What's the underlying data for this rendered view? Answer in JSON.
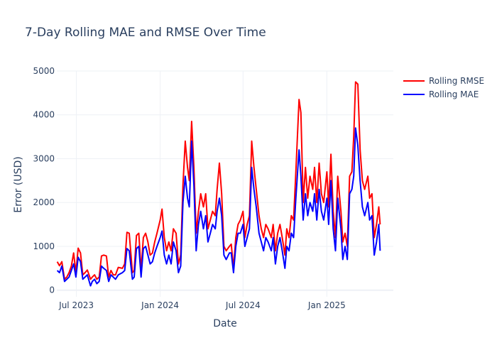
{
  "chart_data": {
    "type": "line",
    "title": "7-Day Rolling MAE and RMSE Over Time",
    "xlabel": "Date",
    "ylabel": "Error (USD)",
    "x_range": [
      "2023-05-19",
      "2025-05-27"
    ],
    "ylim": [
      -150,
      5000
    ],
    "x_ticks": [
      {
        "date": "2023-07-01",
        "label": "Jul 2023"
      },
      {
        "date": "2024-01-01",
        "label": "Jan 2024"
      },
      {
        "date": "2024-07-01",
        "label": "Jul 2024"
      },
      {
        "date": "2025-01-01",
        "label": "Jan 2025"
      }
    ],
    "y_ticks": [
      0,
      1000,
      2000,
      3000,
      4000,
      5000
    ],
    "grid": true,
    "legend": "top-right",
    "series": [
      {
        "name": "Rolling RMSE",
        "color": "#ff0000",
        "points": [
          [
            "2023-05-20",
            650
          ],
          [
            "2023-05-25",
            560
          ],
          [
            "2023-05-30",
            650
          ],
          [
            "2023-06-05",
            250
          ],
          [
            "2023-06-10",
            300
          ],
          [
            "2023-06-15",
            400
          ],
          [
            "2023-06-20",
            550
          ],
          [
            "2023-06-25",
            850
          ],
          [
            "2023-06-30",
            400
          ],
          [
            "2023-07-05",
            960
          ],
          [
            "2023-07-10",
            850
          ],
          [
            "2023-07-15",
            350
          ],
          [
            "2023-07-20",
            400
          ],
          [
            "2023-07-25",
            460
          ],
          [
            "2023-08-01",
            250
          ],
          [
            "2023-08-05",
            300
          ],
          [
            "2023-08-10",
            350
          ],
          [
            "2023-08-15",
            250
          ],
          [
            "2023-08-20",
            300
          ],
          [
            "2023-08-25",
            780
          ],
          [
            "2023-08-30",
            800
          ],
          [
            "2023-09-05",
            780
          ],
          [
            "2023-09-10",
            300
          ],
          [
            "2023-09-15",
            450
          ],
          [
            "2023-09-20",
            350
          ],
          [
            "2023-09-25",
            350
          ],
          [
            "2023-10-01",
            520
          ],
          [
            "2023-10-10",
            500
          ],
          [
            "2023-10-15",
            600
          ],
          [
            "2023-10-20",
            1320
          ],
          [
            "2023-10-25",
            1300
          ],
          [
            "2023-11-01",
            400
          ],
          [
            "2023-11-05",
            450
          ],
          [
            "2023-11-10",
            1250
          ],
          [
            "2023-11-15",
            1300
          ],
          [
            "2023-11-20",
            450
          ],
          [
            "2023-11-25",
            1200
          ],
          [
            "2023-11-30",
            1300
          ],
          [
            "2023-12-05",
            1100
          ],
          [
            "2023-12-10",
            800
          ],
          [
            "2023-12-15",
            850
          ],
          [
            "2023-12-20",
            1100
          ],
          [
            "2023-12-25",
            1300
          ],
          [
            "2024-01-01",
            1600
          ],
          [
            "2024-01-05",
            1850
          ],
          [
            "2024-01-10",
            1200
          ],
          [
            "2024-01-15",
            900
          ],
          [
            "2024-01-20",
            1100
          ],
          [
            "2024-01-25",
            900
          ],
          [
            "2024-01-30",
            1400
          ],
          [
            "2024-02-05",
            1300
          ],
          [
            "2024-02-10",
            600
          ],
          [
            "2024-02-15",
            800
          ],
          [
            "2024-02-20",
            2400
          ],
          [
            "2024-02-25",
            3400
          ],
          [
            "2024-03-01",
            2800
          ],
          [
            "2024-03-05",
            2500
          ],
          [
            "2024-03-10",
            3850
          ],
          [
            "2024-03-15",
            2800
          ],
          [
            "2024-03-20",
            1300
          ],
          [
            "2024-03-25",
            1800
          ],
          [
            "2024-03-30",
            2200
          ],
          [
            "2024-04-05",
            1900
          ],
          [
            "2024-04-10",
            2200
          ],
          [
            "2024-04-15",
            1400
          ],
          [
            "2024-04-20",
            1600
          ],
          [
            "2024-04-25",
            1800
          ],
          [
            "2024-05-01",
            1700
          ],
          [
            "2024-05-05",
            2300
          ],
          [
            "2024-05-10",
            2900
          ],
          [
            "2024-05-15",
            2200
          ],
          [
            "2024-05-20",
            1000
          ],
          [
            "2024-05-25",
            900
          ],
          [
            "2024-06-01",
            1000
          ],
          [
            "2024-06-05",
            1050
          ],
          [
            "2024-06-10",
            500
          ],
          [
            "2024-06-15",
            1200
          ],
          [
            "2024-06-20",
            1500
          ],
          [
            "2024-06-25",
            1600
          ],
          [
            "2024-07-01",
            1800
          ],
          [
            "2024-07-05",
            1200
          ],
          [
            "2024-07-10",
            1500
          ],
          [
            "2024-07-15",
            1700
          ],
          [
            "2024-07-20",
            3400
          ],
          [
            "2024-07-25",
            2800
          ],
          [
            "2024-07-30",
            2300
          ],
          [
            "2024-08-05",
            1700
          ],
          [
            "2024-08-10",
            1400
          ],
          [
            "2024-08-15",
            1200
          ],
          [
            "2024-08-20",
            1500
          ],
          [
            "2024-08-25",
            1400
          ],
          [
            "2024-09-01",
            1200
          ],
          [
            "2024-09-05",
            1500
          ],
          [
            "2024-09-10",
            900
          ],
          [
            "2024-09-15",
            1300
          ],
          [
            "2024-09-20",
            1500
          ],
          [
            "2024-09-25",
            1200
          ],
          [
            "2024-10-01",
            800
          ],
          [
            "2024-10-05",
            1400
          ],
          [
            "2024-10-10",
            1200
          ],
          [
            "2024-10-15",
            1700
          ],
          [
            "2024-10-20",
            1600
          ],
          [
            "2024-10-25",
            2700
          ],
          [
            "2024-11-01",
            4350
          ],
          [
            "2024-11-05",
            4050
          ],
          [
            "2024-11-10",
            2000
          ],
          [
            "2024-11-15",
            2800
          ],
          [
            "2024-11-20",
            2100
          ],
          [
            "2024-11-25",
            2600
          ],
          [
            "2024-12-01",
            2300
          ],
          [
            "2024-12-05",
            2800
          ],
          [
            "2024-12-10",
            2000
          ],
          [
            "2024-12-15",
            2900
          ],
          [
            "2024-12-20",
            2200
          ],
          [
            "2024-12-25",
            2000
          ],
          [
            "2025-01-01",
            2700
          ],
          [
            "2025-01-05",
            1900
          ],
          [
            "2025-01-10",
            3100
          ],
          [
            "2025-01-15",
            1800
          ],
          [
            "2025-01-20",
            1200
          ],
          [
            "2025-01-25",
            2600
          ],
          [
            "2025-02-01",
            1800
          ],
          [
            "2025-02-05",
            1100
          ],
          [
            "2025-02-10",
            1300
          ],
          [
            "2025-02-15",
            1000
          ],
          [
            "2025-02-20",
            2600
          ],
          [
            "2025-02-25",
            2700
          ],
          [
            "2025-03-01",
            3500
          ],
          [
            "2025-03-05",
            4750
          ],
          [
            "2025-03-10",
            4700
          ],
          [
            "2025-03-15",
            3200
          ],
          [
            "2025-03-20",
            2500
          ],
          [
            "2025-03-25",
            2300
          ],
          [
            "2025-04-01",
            2600
          ],
          [
            "2025-04-05",
            2100
          ],
          [
            "2025-04-10",
            2200
          ],
          [
            "2025-04-15",
            1200
          ],
          [
            "2025-04-20",
            1500
          ],
          [
            "2025-04-25",
            1900
          ],
          [
            "2025-04-28",
            1500
          ]
        ]
      },
      {
        "name": "Rolling MAE",
        "color": "#0000ff",
        "points": [
          [
            "2023-05-20",
            450
          ],
          [
            "2023-05-25",
            400
          ],
          [
            "2023-05-30",
            550
          ],
          [
            "2023-06-05",
            200
          ],
          [
            "2023-06-10",
            250
          ],
          [
            "2023-06-15",
            300
          ],
          [
            "2023-06-20",
            450
          ],
          [
            "2023-06-25",
            600
          ],
          [
            "2023-06-30",
            300
          ],
          [
            "2023-07-05",
            750
          ],
          [
            "2023-07-10",
            650
          ],
          [
            "2023-07-15",
            250
          ],
          [
            "2023-07-20",
            300
          ],
          [
            "2023-07-25",
            350
          ],
          [
            "2023-08-01",
            100
          ],
          [
            "2023-08-05",
            200
          ],
          [
            "2023-08-10",
            250
          ],
          [
            "2023-08-15",
            150
          ],
          [
            "2023-08-20",
            200
          ],
          [
            "2023-08-25",
            550
          ],
          [
            "2023-08-30",
            500
          ],
          [
            "2023-09-05",
            450
          ],
          [
            "2023-09-10",
            200
          ],
          [
            "2023-09-15",
            350
          ],
          [
            "2023-09-20",
            300
          ],
          [
            "2023-09-25",
            250
          ],
          [
            "2023-10-01",
            350
          ],
          [
            "2023-10-10",
            400
          ],
          [
            "2023-10-15",
            450
          ],
          [
            "2023-10-20",
            950
          ],
          [
            "2023-10-25",
            900
          ],
          [
            "2023-11-01",
            250
          ],
          [
            "2023-11-05",
            300
          ],
          [
            "2023-11-10",
            950
          ],
          [
            "2023-11-15",
            1000
          ],
          [
            "2023-11-20",
            300
          ],
          [
            "2023-11-25",
            950
          ],
          [
            "2023-11-30",
            1000
          ],
          [
            "2023-12-05",
            800
          ],
          [
            "2023-12-10",
            600
          ],
          [
            "2023-12-15",
            650
          ],
          [
            "2023-12-20",
            850
          ],
          [
            "2023-12-25",
            1000
          ],
          [
            "2024-01-01",
            1200
          ],
          [
            "2024-01-05",
            1350
          ],
          [
            "2024-01-10",
            800
          ],
          [
            "2024-01-15",
            600
          ],
          [
            "2024-01-20",
            800
          ],
          [
            "2024-01-25",
            600
          ],
          [
            "2024-01-30",
            1100
          ],
          [
            "2024-02-05",
            900
          ],
          [
            "2024-02-10",
            400
          ],
          [
            "2024-02-15",
            550
          ],
          [
            "2024-02-20",
            2000
          ],
          [
            "2024-02-25",
            2600
          ],
          [
            "2024-03-01",
            2100
          ],
          [
            "2024-03-05",
            1900
          ],
          [
            "2024-03-10",
            3400
          ],
          [
            "2024-03-15",
            2400
          ],
          [
            "2024-03-20",
            900
          ],
          [
            "2024-03-25",
            1500
          ],
          [
            "2024-03-30",
            1800
          ],
          [
            "2024-04-05",
            1400
          ],
          [
            "2024-04-10",
            1700
          ],
          [
            "2024-04-15",
            1100
          ],
          [
            "2024-04-20",
            1300
          ],
          [
            "2024-04-25",
            1500
          ],
          [
            "2024-05-01",
            1400
          ],
          [
            "2024-05-05",
            1800
          ],
          [
            "2024-05-10",
            2100
          ],
          [
            "2024-05-15",
            1700
          ],
          [
            "2024-05-20",
            800
          ],
          [
            "2024-05-25",
            700
          ],
          [
            "2024-06-01",
            850
          ],
          [
            "2024-06-05",
            850
          ],
          [
            "2024-06-10",
            400
          ],
          [
            "2024-06-15",
            1000
          ],
          [
            "2024-06-20",
            1300
          ],
          [
            "2024-06-25",
            1300
          ],
          [
            "2024-07-01",
            1500
          ],
          [
            "2024-07-05",
            1000
          ],
          [
            "2024-07-10",
            1200
          ],
          [
            "2024-07-15",
            1400
          ],
          [
            "2024-07-20",
            2800
          ],
          [
            "2024-07-25",
            2300
          ],
          [
            "2024-07-30",
            1900
          ],
          [
            "2024-08-05",
            1300
          ],
          [
            "2024-08-10",
            1100
          ],
          [
            "2024-08-15",
            900
          ],
          [
            "2024-08-20",
            1200
          ],
          [
            "2024-08-25",
            1100
          ],
          [
            "2024-09-01",
            900
          ],
          [
            "2024-09-05",
            1200
          ],
          [
            "2024-09-10",
            600
          ],
          [
            "2024-09-15",
            1000
          ],
          [
            "2024-09-20",
            1200
          ],
          [
            "2024-09-25",
            900
          ],
          [
            "2024-10-01",
            500
          ],
          [
            "2024-10-05",
            1000
          ],
          [
            "2024-10-10",
            900
          ],
          [
            "2024-10-15",
            1300
          ],
          [
            "2024-10-20",
            1200
          ],
          [
            "2024-10-25",
            2100
          ],
          [
            "2024-11-01",
            3200
          ],
          [
            "2024-11-05",
            2600
          ],
          [
            "2024-11-10",
            1600
          ],
          [
            "2024-11-15",
            2200
          ],
          [
            "2024-11-20",
            1700
          ],
          [
            "2024-11-25",
            2000
          ],
          [
            "2024-12-01",
            1800
          ],
          [
            "2024-12-05",
            2200
          ],
          [
            "2024-12-10",
            1600
          ],
          [
            "2024-12-15",
            2300
          ],
          [
            "2024-12-20",
            1800
          ],
          [
            "2024-12-25",
            1600
          ],
          [
            "2025-01-01",
            2100
          ],
          [
            "2025-01-05",
            1500
          ],
          [
            "2025-01-10",
            2500
          ],
          [
            "2025-01-15",
            1400
          ],
          [
            "2025-01-20",
            900
          ],
          [
            "2025-01-25",
            2100
          ],
          [
            "2025-02-01",
            1400
          ],
          [
            "2025-02-05",
            700
          ],
          [
            "2025-02-10",
            1000
          ],
          [
            "2025-02-15",
            700
          ],
          [
            "2025-02-20",
            2200
          ],
          [
            "2025-02-25",
            2300
          ],
          [
            "2025-03-01",
            2600
          ],
          [
            "2025-03-05",
            3700
          ],
          [
            "2025-03-10",
            3300
          ],
          [
            "2025-03-15",
            2500
          ],
          [
            "2025-03-20",
            1900
          ],
          [
            "2025-03-25",
            1700
          ],
          [
            "2025-04-01",
            2000
          ],
          [
            "2025-04-05",
            1600
          ],
          [
            "2025-04-10",
            1700
          ],
          [
            "2025-04-15",
            800
          ],
          [
            "2025-04-20",
            1100
          ],
          [
            "2025-04-25",
            1500
          ],
          [
            "2025-04-28",
            900
          ]
        ]
      }
    ]
  }
}
